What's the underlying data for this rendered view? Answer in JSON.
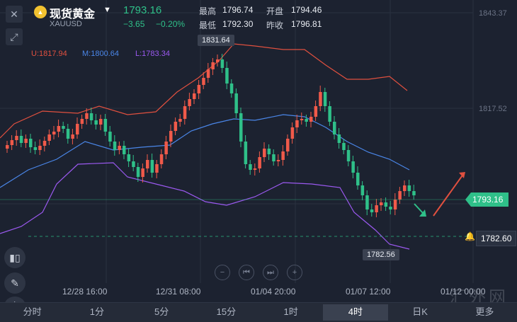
{
  "header": {
    "name": "现货黄金",
    "symbol": "XAUUSD",
    "price": "1793.16",
    "change": "−3.65",
    "change_pct": "−0.20%",
    "high_label": "最高",
    "high": "1796.74",
    "open_label": "开盘",
    "open": "1794.46",
    "low_label": "最低",
    "low": "1792.30",
    "prev_close_label": "昨收",
    "prev_close": "1796.81"
  },
  "indicators": {
    "upper": "U:1817.94",
    "middle": "M:1800.64",
    "lower": "L:1783.34",
    "colors": {
      "upper": "#e0503f",
      "middle": "#4a86e8",
      "lower": "#9b59f0"
    }
  },
  "annotations": {
    "high_point": "1831.64",
    "low_point": "1782.56",
    "current_price": "1793.16",
    "alert_price": "1782.60"
  },
  "price_axis": {
    "top": "1843.37",
    "mid": "1817.52"
  },
  "time_axis": [
    "12/28 16:00",
    "12/31 08:00",
    "01/04 20:00",
    "01/07 12:00",
    "01/12 00:00"
  ],
  "controls": [
    "−",
    "⏮",
    "⏭",
    "+"
  ],
  "tabs": [
    {
      "label": "分时",
      "active": false
    },
    {
      "label": "1分",
      "active": false
    },
    {
      "label": "5分",
      "active": false
    },
    {
      "label": "15分",
      "active": false
    },
    {
      "label": "1时",
      "active": false
    },
    {
      "label": "4时",
      "active": true
    },
    {
      "label": "日K",
      "active": false
    },
    {
      "label": "更多",
      "active": false
    }
  ],
  "watermark": "汇外网",
  "colors": {
    "up": "#f05a4a",
    "down": "#2fc089",
    "bg": "#1c2230"
  }
}
